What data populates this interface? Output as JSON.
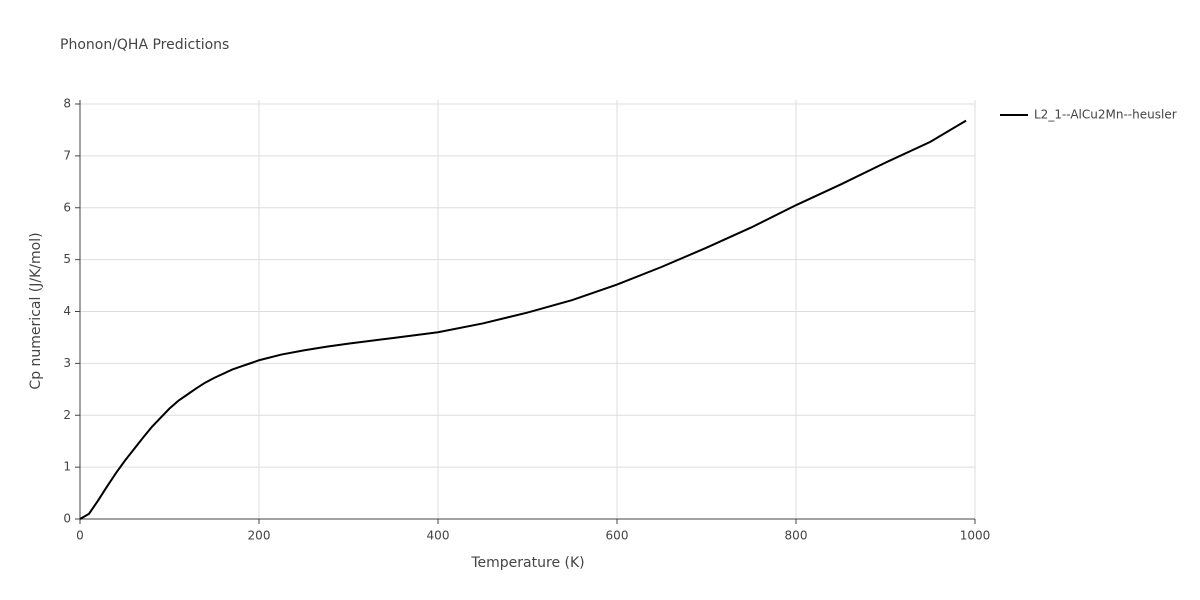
{
  "chart_data": {
    "type": "line",
    "title": "Phonon/QHA Predictions",
    "x_label": "Temperature (K)",
    "y_label": "Cp numerical (J/K/mol)",
    "x": [
      0,
      10,
      20,
      30,
      40,
      50,
      60,
      70,
      80,
      90,
      100,
      110,
      120,
      130,
      140,
      150,
      160,
      170,
      180,
      190,
      200,
      225,
      250,
      275,
      300,
      350,
      400,
      450,
      500,
      550,
      600,
      650,
      700,
      750,
      800,
      850,
      900,
      950,
      990
    ],
    "series": [
      {
        "name": "L2_1--AlCu2Mn--heusler",
        "color": "#000000",
        "values": [
          0,
          0.1,
          0.35,
          0.62,
          0.88,
          1.12,
          1.34,
          1.56,
          1.77,
          1.95,
          2.13,
          2.28,
          2.4,
          2.52,
          2.63,
          2.72,
          2.8,
          2.88,
          2.94,
          3.0,
          3.06,
          3.17,
          3.25,
          3.32,
          3.38,
          3.49,
          3.6,
          3.77,
          3.98,
          4.22,
          4.52,
          4.86,
          5.23,
          5.62,
          6.05,
          6.45,
          6.87,
          7.27,
          7.68
        ]
      }
    ],
    "xlim": [
      0,
      1000
    ],
    "xticks": [
      0,
      200,
      400,
      600,
      800,
      1000
    ],
    "ylim": [
      0,
      8
    ],
    "yticks": [
      0,
      1,
      2,
      3,
      4,
      5,
      6,
      7,
      8
    ],
    "grid": true,
    "legend": "right"
  }
}
